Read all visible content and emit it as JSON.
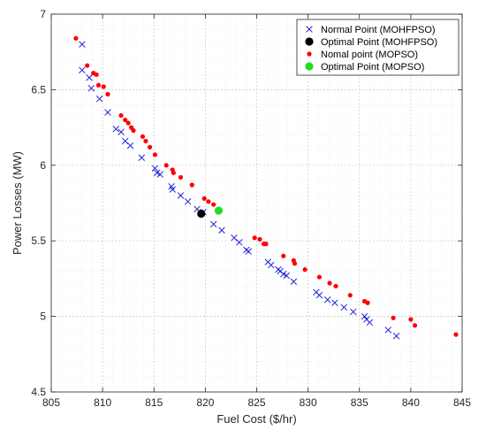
{
  "chart_data": {
    "type": "scatter",
    "title": "",
    "xlabel": "Fuel Cost ($/hr)",
    "ylabel": "Power Losses (MW)",
    "xlim": [
      805,
      845
    ],
    "ylim": [
      4.5,
      7
    ],
    "xticks": [
      805,
      810,
      815,
      820,
      825,
      830,
      835,
      840,
      845
    ],
    "yticks": [
      4.5,
      5,
      5.5,
      6,
      6.5,
      7
    ],
    "xtick_labels": [
      "805",
      "810",
      "815",
      "820",
      "825",
      "830",
      "835",
      "840",
      "845"
    ],
    "ytick_labels": [
      "4.5",
      "5",
      "5.5",
      "6",
      "6.5",
      "7"
    ],
    "grid": true,
    "legend_position": "top-right",
    "series": [
      {
        "name": "Normal Point (MOHFPSO)",
        "marker": "x",
        "color": "#2222dd",
        "points": [
          [
            808.0,
            6.8
          ],
          [
            808.0,
            6.63
          ],
          [
            808.7,
            6.58
          ],
          [
            808.9,
            6.51
          ],
          [
            809.7,
            6.44
          ],
          [
            810.5,
            6.35
          ],
          [
            811.3,
            6.24
          ],
          [
            811.8,
            6.22
          ],
          [
            812.2,
            6.16
          ],
          [
            812.7,
            6.13
          ],
          [
            813.8,
            6.05
          ],
          [
            815.1,
            5.98
          ],
          [
            815.3,
            5.95
          ],
          [
            815.6,
            5.94
          ],
          [
            816.7,
            5.86
          ],
          [
            816.8,
            5.84
          ],
          [
            817.6,
            5.8
          ],
          [
            818.3,
            5.76
          ],
          [
            819.2,
            5.71
          ],
          [
            819.8,
            5.69
          ],
          [
            820.8,
            5.61
          ],
          [
            821.6,
            5.57
          ],
          [
            822.8,
            5.52
          ],
          [
            823.3,
            5.49
          ],
          [
            824.0,
            5.44
          ],
          [
            824.2,
            5.43
          ],
          [
            826.1,
            5.36
          ],
          [
            826.4,
            5.34
          ],
          [
            827.1,
            5.31
          ],
          [
            827.3,
            5.3
          ],
          [
            827.6,
            5.28
          ],
          [
            827.9,
            5.27
          ],
          [
            828.6,
            5.23
          ],
          [
            830.8,
            5.16
          ],
          [
            831.1,
            5.14
          ],
          [
            831.9,
            5.11
          ],
          [
            832.6,
            5.09
          ],
          [
            833.5,
            5.06
          ],
          [
            834.4,
            5.03
          ],
          [
            835.5,
            5.0
          ],
          [
            835.7,
            4.98
          ],
          [
            836.0,
            4.96
          ],
          [
            837.8,
            4.91
          ],
          [
            838.6,
            4.87
          ]
        ]
      },
      {
        "name": "Optimal Point (MOHFPSO)",
        "marker": "filled-circle-large",
        "color": "#000000",
        "points": [
          [
            819.6,
            5.68
          ]
        ]
      },
      {
        "name": "Nomal point (MOPSO)",
        "marker": "dot",
        "color": "#ff0000",
        "points": [
          [
            807.4,
            6.84
          ],
          [
            808.5,
            6.66
          ],
          [
            809.1,
            6.61
          ],
          [
            809.4,
            6.6
          ],
          [
            809.6,
            6.53
          ],
          [
            810.1,
            6.52
          ],
          [
            810.5,
            6.47
          ],
          [
            811.8,
            6.33
          ],
          [
            812.2,
            6.3
          ],
          [
            812.5,
            6.28
          ],
          [
            812.8,
            6.25
          ],
          [
            813.0,
            6.23
          ],
          [
            813.9,
            6.19
          ],
          [
            814.2,
            6.16
          ],
          [
            814.6,
            6.12
          ],
          [
            815.1,
            6.07
          ],
          [
            816.2,
            6.0
          ],
          [
            816.8,
            5.97
          ],
          [
            816.9,
            5.95
          ],
          [
            817.6,
            5.92
          ],
          [
            818.7,
            5.87
          ],
          [
            819.9,
            5.78
          ],
          [
            820.3,
            5.76
          ],
          [
            820.8,
            5.74
          ],
          [
            824.8,
            5.52
          ],
          [
            825.3,
            5.51
          ],
          [
            825.7,
            5.48
          ],
          [
            825.9,
            5.48
          ],
          [
            827.6,
            5.4
          ],
          [
            828.6,
            5.37
          ],
          [
            828.7,
            5.35
          ],
          [
            829.7,
            5.31
          ],
          [
            831.1,
            5.26
          ],
          [
            832.1,
            5.22
          ],
          [
            832.7,
            5.2
          ],
          [
            834.1,
            5.14
          ],
          [
            835.5,
            5.1
          ],
          [
            835.8,
            5.09
          ],
          [
            838.3,
            4.99
          ],
          [
            840.0,
            4.98
          ],
          [
            840.4,
            4.94
          ],
          [
            844.4,
            4.88
          ]
        ]
      },
      {
        "name": "Optimal Point (MOPSO)",
        "marker": "filled-circle-large",
        "color": "#22dd22",
        "points": [
          [
            821.3,
            5.7
          ]
        ]
      }
    ]
  }
}
